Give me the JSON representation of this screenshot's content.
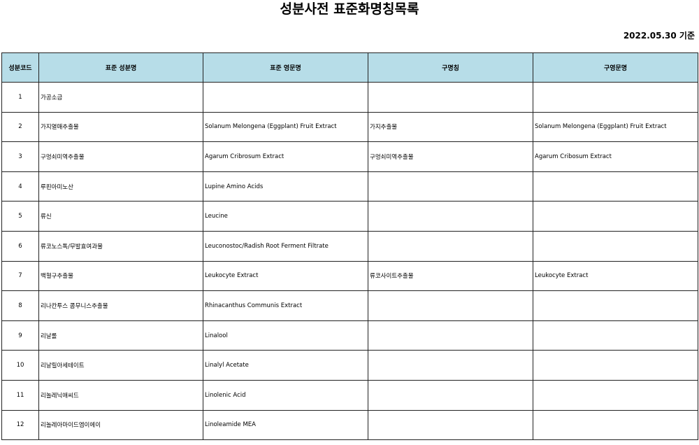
{
  "title": "성분사전 표준화명칭목록",
  "date_label": "2022.05.30 기준",
  "header_color": "#b7dde8",
  "columns": [
    "성분코드",
    "표준 성분명",
    "표준 영문명",
    "구명칭",
    "구영문명"
  ],
  "rows": [
    {
      "code": "1",
      "name": "가공소금",
      "english": "",
      "old_name": "",
      "old_english": ""
    },
    {
      "code": "2",
      "name": "가지열매추출물",
      "english": "Solanum Melongena (Eggplant) Fruit Extract",
      "old_name": "가지추출물",
      "old_english": "Solanum Melongena (Eggplant) Fruit Extract"
    },
    {
      "code": "3",
      "name": "구멍쇠미역추출물",
      "english": "Agarum Cribrosum Extract",
      "old_name": "구멍쇠미역추출물",
      "old_english": "Agarum Cribosum Extract"
    },
    {
      "code": "4",
      "name": "루핀아미노산",
      "english": "Lupine Amino Acids",
      "old_name": "",
      "old_english": ""
    },
    {
      "code": "5",
      "name": "류신",
      "english": "Leucine",
      "old_name": "",
      "old_english": ""
    },
    {
      "code": "6",
      "name": "류코노스톡/무발효여과물",
      "english": "Leuconostoc/Radish Root Ferment Filtrate",
      "old_name": "",
      "old_english": ""
    },
    {
      "code": "7",
      "name": "백혈구추출물",
      "english": "Leukocyte Extract",
      "old_name": "류코사이트추출물",
      "old_english": "Leukocyte Extract"
    },
    {
      "code": "8",
      "name": "리나칸투스 콤무니스추출물",
      "english": "Rhinacanthus Communis Extract",
      "old_name": "",
      "old_english": ""
    },
    {
      "code": "9",
      "name": "리날롤",
      "english": "Linalool",
      "old_name": "",
      "old_english": ""
    },
    {
      "code": "10",
      "name": "리날릴아세테이트",
      "english": "Linalyl Acetate",
      "old_name": "",
      "old_english": ""
    },
    {
      "code": "11",
      "name": "리놀레닉애씨드",
      "english": "Linolenic Acid",
      "old_name": "",
      "old_english": ""
    },
    {
      "code": "12",
      "name": "리놀레아마이드엠이에이",
      "english": "Linoleamide MEA",
      "old_name": "",
      "old_english": ""
    }
  ]
}
